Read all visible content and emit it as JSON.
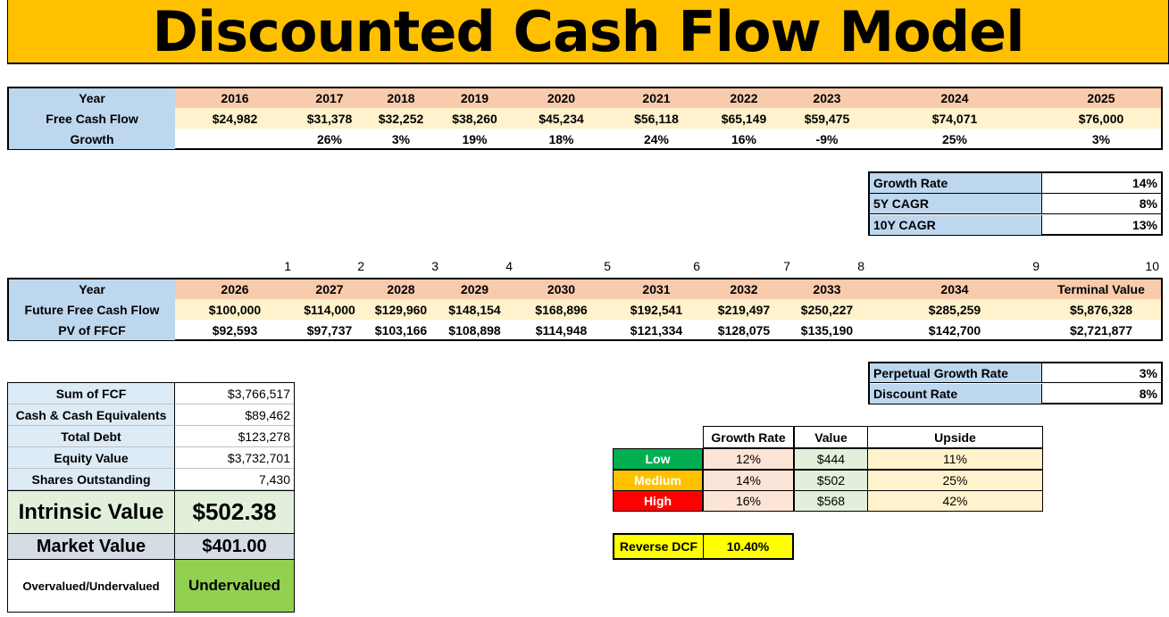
{
  "title": "Discounted Cash Flow Model",
  "historical": {
    "row_labels": [
      "Year",
      "Free Cash Flow",
      "Growth"
    ],
    "years": [
      "2016",
      "2017",
      "2018",
      "2019",
      "2020",
      "2021",
      "2022",
      "2023",
      "2024",
      "2025"
    ],
    "fcf": [
      "$24,982",
      "$31,378",
      "$32,252",
      "$38,260",
      "$45,234",
      "$56,118",
      "$65,149",
      "$59,475",
      "$74,071",
      "$76,000"
    ],
    "growth": [
      "",
      "26%",
      "3%",
      "19%",
      "18%",
      "24%",
      "16%",
      "-9%",
      "25%",
      "3%"
    ]
  },
  "growth_table": {
    "rows": [
      {
        "label": "Growth Rate",
        "value": "14%"
      },
      {
        "label": "5Y CAGR",
        "value": "8%"
      },
      {
        "label": "10Y CAGR",
        "value": "13%"
      }
    ]
  },
  "projection": {
    "indices": [
      "1",
      "2",
      "3",
      "4",
      "5",
      "6",
      "7",
      "8",
      "9",
      "10"
    ],
    "row_labels": [
      "Year",
      "Future Free Cash Flow",
      "PV of FFCF"
    ],
    "years": [
      "2026",
      "2027",
      "2028",
      "2029",
      "2030",
      "2031",
      "2032",
      "2033",
      "2034",
      "Terminal Value"
    ],
    "ffcf": [
      "$100,000",
      "$114,000",
      "$129,960",
      "$148,154",
      "$168,896",
      "$192,541",
      "$219,497",
      "$250,227",
      "$285,259",
      "$5,876,328"
    ],
    "pv": [
      "$92,593",
      "$97,737",
      "$103,166",
      "$108,898",
      "$114,948",
      "$121,334",
      "$128,075",
      "$135,190",
      "$142,700",
      "$2,721,877"
    ]
  },
  "rates": {
    "rows": [
      {
        "label": "Perpetual Growth Rate",
        "value": "3%"
      },
      {
        "label": "Discount Rate",
        "value": "8%"
      }
    ]
  },
  "summary": {
    "rows": [
      {
        "label": "Sum of FCF",
        "value": "$3,766,517"
      },
      {
        "label": "Cash & Cash Equivalents",
        "value": "$89,462"
      },
      {
        "label": "Total Debt",
        "value": "$123,278"
      },
      {
        "label": "Equity Value",
        "value": "$3,732,701"
      },
      {
        "label": "Shares Outstanding",
        "value": "7,430"
      }
    ],
    "intrinsic_label": "Intrinsic Value",
    "intrinsic_value": "$502.38",
    "market_label": "Market Value",
    "market_value": "$401.00",
    "verdict_label": "Overvalued/Undervalued",
    "verdict_value": "Undervalued"
  },
  "scenarios": {
    "headers": [
      "Growth Rate",
      "Value",
      "Upside"
    ],
    "rows": [
      {
        "label": "Low",
        "growth": "12%",
        "value": "$444",
        "upside": "11%",
        "color": "#00b050"
      },
      {
        "label": "Medium",
        "growth": "14%",
        "value": "$502",
        "upside": "25%",
        "color": "#ffc000"
      },
      {
        "label": "High",
        "growth": "16%",
        "value": "$568",
        "upside": "42%",
        "color": "#ff0000"
      }
    ]
  },
  "reverse_dcf": {
    "label": "Reverse DCF",
    "value": "10.40%"
  },
  "colors": {
    "title_bg": "#ffc000",
    "header_bg": "#f8cbad",
    "label_bg": "#bdd7ee",
    "value_bg": "#fff2cc",
    "intrinsic_bg": "#e2efda",
    "market_bg": "#d6dce4",
    "verdict_bg": "#92d050",
    "reverse_bg": "#ffff00"
  }
}
